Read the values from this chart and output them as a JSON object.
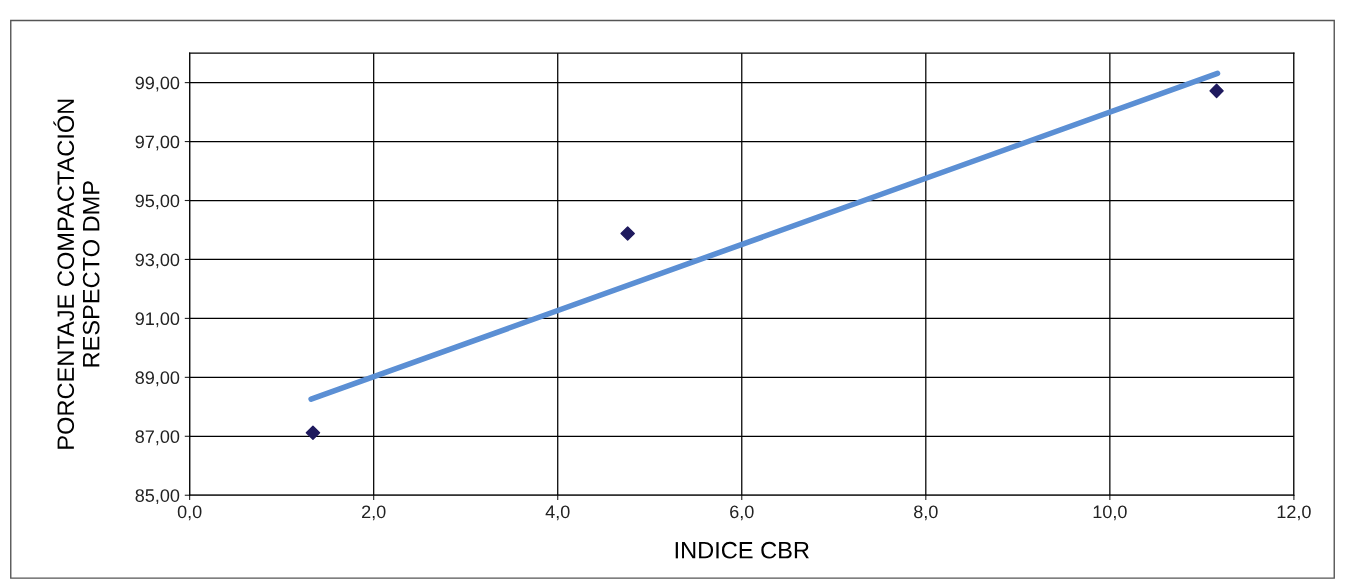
{
  "chart_data": {
    "type": "scatter",
    "xlabel": "INDICE CBR",
    "ylabel": "PORCENTAJE COMPACTACIÓN\nRESPECTO DMP",
    "series": [
      {
        "color": "#1f1a5e",
        "marker": "diamond",
        "x": [
          1.34,
          4.76,
          11.16
        ],
        "values": [
          87.12,
          93.88,
          98.72
        ]
      },
      {
        "type": "line",
        "color": "#5b8fd4",
        "x": [
          1.32,
          11.17
        ],
        "values": [
          88.26,
          99.31
        ]
      }
    ],
    "xlim": [
      0,
      12
    ],
    "ylim": [
      85,
      100
    ],
    "xticks": [
      {
        "value": 0,
        "label": "0,0"
      },
      {
        "value": 2,
        "label": "2,0"
      },
      {
        "value": 4,
        "label": "4,0"
      },
      {
        "value": 6,
        "label": "6,0"
      },
      {
        "value": 8,
        "label": "8,0"
      },
      {
        "value": 10,
        "label": "10,0"
      },
      {
        "value": 12,
        "label": "12,0"
      }
    ],
    "yticks": [
      {
        "value": 85,
        "label": "85,00"
      },
      {
        "value": 87,
        "label": "87,00"
      },
      {
        "value": 89,
        "label": "89,00"
      },
      {
        "value": 91,
        "label": "91,00"
      },
      {
        "value": 93,
        "label": "93,00"
      },
      {
        "value": 95,
        "label": "95,00"
      },
      {
        "value": 97,
        "label": "97,00"
      },
      {
        "value": 99,
        "label": "99,00"
      }
    ],
    "grid": true
  }
}
